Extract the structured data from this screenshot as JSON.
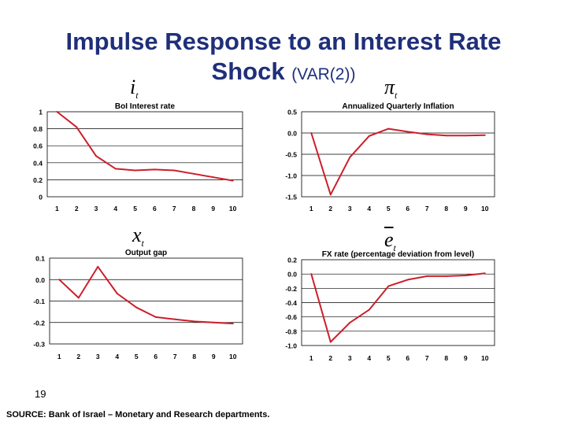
{
  "slide": {
    "title_main": "Impulse Response to an Interest Rate",
    "title_line2": "Shock",
    "title_sub": "(VAR(2))",
    "slide_number": "19",
    "source": "SOURCE: Bank of Israel – Monetary and Research departments.",
    "symbols": [
      {
        "name": "i",
        "sub": "t",
        "bar": false
      },
      {
        "name": "π",
        "sub": "t",
        "bar": false
      },
      {
        "name": "x",
        "sub": "t",
        "bar": false
      },
      {
        "name": "e",
        "sub": "t",
        "bar": true
      }
    ]
  },
  "chart_data": [
    {
      "type": "line",
      "title": "BoI Interest rate",
      "x": [
        1,
        2,
        3,
        4,
        5,
        6,
        7,
        8,
        9,
        10
      ],
      "values": [
        1.0,
        0.82,
        0.48,
        0.33,
        0.31,
        0.32,
        0.31,
        0.27,
        0.23,
        0.19
      ],
      "ylim": [
        0,
        1
      ],
      "yticks": [
        0,
        0.2,
        0.4,
        0.6,
        0.8,
        1
      ],
      "ytick_labels": [
        "0",
        "0.2",
        "0.4",
        "0.6",
        "0.8",
        "1"
      ],
      "line_color": "#cc1f2b"
    },
    {
      "type": "line",
      "title": "Annualized Quarterly Inflation",
      "x": [
        1,
        2,
        3,
        4,
        5,
        6,
        7,
        8,
        9,
        10
      ],
      "values": [
        0.0,
        -1.45,
        -0.57,
        -0.07,
        0.1,
        0.03,
        -0.03,
        -0.06,
        -0.06,
        -0.05
      ],
      "ylim": [
        -1.5,
        0.5
      ],
      "yticks": [
        -1.5,
        -1.0,
        -0.5,
        0.0,
        0.5
      ],
      "ytick_labels": [
        "-1.5",
        "-1.0",
        "-0.5",
        "0.0",
        "0.5"
      ],
      "line_color": "#cc1f2b"
    },
    {
      "type": "line",
      "title": "Output gap",
      "x": [
        1,
        2,
        3,
        4,
        5,
        6,
        7,
        8,
        9,
        10
      ],
      "values": [
        0.0,
        -0.085,
        0.06,
        -0.065,
        -0.13,
        -0.175,
        -0.185,
        -0.195,
        -0.2,
        -0.205
      ],
      "ylim": [
        -0.3,
        0.1
      ],
      "yticks": [
        -0.3,
        -0.2,
        -0.1,
        0.0,
        0.1
      ],
      "ytick_labels": [
        "-0.3",
        "-0.2",
        "-0.1",
        "0.0",
        "0.1"
      ],
      "line_color": "#cc1f2b"
    },
    {
      "type": "line",
      "title": "FX rate (percentage deviation from level)",
      "x": [
        1,
        2,
        3,
        4,
        5,
        6,
        7,
        8,
        9,
        10
      ],
      "values": [
        0.0,
        -0.95,
        -0.68,
        -0.5,
        -0.17,
        -0.08,
        -0.03,
        -0.03,
        -0.02,
        0.01
      ],
      "ylim": [
        -1.0,
        0.2
      ],
      "yticks": [
        -1.0,
        -0.8,
        -0.6,
        -0.4,
        -0.2,
        0.0,
        0.2
      ],
      "ytick_labels": [
        "-1.0",
        "-0.8",
        "-0.6",
        "-0.4",
        "-0.2",
        "0.0",
        "0.2"
      ],
      "line_color": "#cc1f2b"
    }
  ]
}
